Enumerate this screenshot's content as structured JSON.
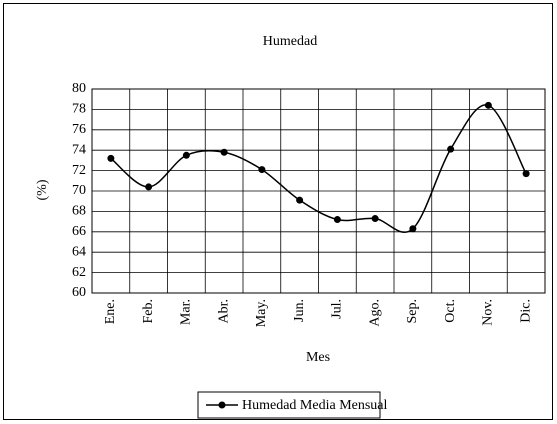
{
  "chart_data": {
    "type": "line",
    "title": "Humedad",
    "x_label": "Mes",
    "y_label": "(%)",
    "categories": [
      "Ene.",
      "Feb.",
      "Mar.",
      "Abr.",
      "May.",
      "Jun.",
      "Jul.",
      "Ago.",
      "Sep.",
      "Oct.",
      "Nov.",
      "Dic."
    ],
    "series": [
      {
        "name": "Humedad Media Mensual",
        "color": "#000000",
        "values": [
          73.2,
          70.4,
          73.5,
          73.8,
          72.1,
          69.1,
          67.2,
          67.3,
          66.3,
          74.1,
          78.4,
          71.7
        ]
      }
    ],
    "ylim": [
      60,
      80
    ],
    "yticks": [
      60,
      62,
      64,
      66,
      68,
      70,
      72,
      74,
      76,
      78,
      80
    ],
    "grid": true,
    "legend": "bottom"
  }
}
